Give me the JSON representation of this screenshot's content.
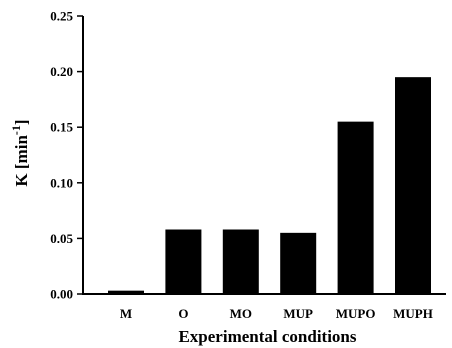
{
  "chart_data": {
    "type": "bar",
    "categories": [
      "M",
      "O",
      "MO",
      "MUP",
      "MUPO",
      "MUPH"
    ],
    "values": [
      0.003,
      0.058,
      0.058,
      0.055,
      0.155,
      0.195
    ],
    "xlabel": "Experimental conditions",
    "ylabel": "K [min",
    "ylabel_superscript": "-1",
    "ylabel_suffix": "]",
    "ylim": [
      0,
      0.25
    ],
    "yticks": [
      "0.00",
      "0.05",
      "0.10",
      "0.15",
      "0.20",
      "0.25"
    ],
    "bar_color": "#000000",
    "grid": false,
    "legend": "none"
  }
}
